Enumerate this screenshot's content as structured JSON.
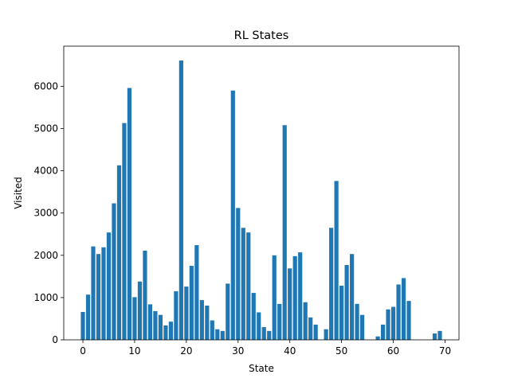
{
  "chart_data": {
    "type": "bar",
    "title": "RL States",
    "xlabel": "State",
    "ylabel": "Visited",
    "xlim": [
      -3.7,
      72.7
    ],
    "ylim": [
      0,
      6950
    ],
    "x_ticks": [
      0,
      10,
      20,
      30,
      40,
      50,
      60,
      70
    ],
    "y_ticks": [
      0,
      1000,
      2000,
      3000,
      4000,
      5000,
      6000
    ],
    "grid": false,
    "bar_color": "#1f77b4",
    "x": [
      0,
      1,
      2,
      3,
      4,
      5,
      6,
      7,
      8,
      9,
      10,
      11,
      12,
      13,
      14,
      15,
      16,
      17,
      18,
      19,
      20,
      21,
      22,
      23,
      24,
      25,
      26,
      27,
      28,
      29,
      30,
      31,
      32,
      33,
      34,
      35,
      36,
      37,
      38,
      39,
      40,
      41,
      42,
      43,
      44,
      45,
      46,
      47,
      48,
      49,
      50,
      51,
      52,
      53,
      54,
      55,
      56,
      57,
      58,
      59,
      60,
      61,
      62,
      63,
      64,
      65,
      66,
      67,
      68,
      69
    ],
    "values": [
      660,
      1070,
      2210,
      2030,
      2190,
      2540,
      3230,
      4130,
      5130,
      5960,
      1010,
      1380,
      2110,
      840,
      680,
      590,
      340,
      430,
      1150,
      6610,
      1260,
      1750,
      2240,
      940,
      810,
      460,
      250,
      210,
      1330,
      5900,
      3120,
      2650,
      2540,
      1110,
      650,
      300,
      210,
      2000,
      850,
      5080,
      1690,
      1980,
      2070,
      890,
      530,
      360,
      0,
      250,
      2650,
      3760,
      1280,
      1770,
      2030,
      850,
      590,
      0,
      0,
      80,
      360,
      720,
      780,
      1310,
      1460,
      920,
      0,
      0,
      0,
      0,
      150,
      210
    ]
  }
}
